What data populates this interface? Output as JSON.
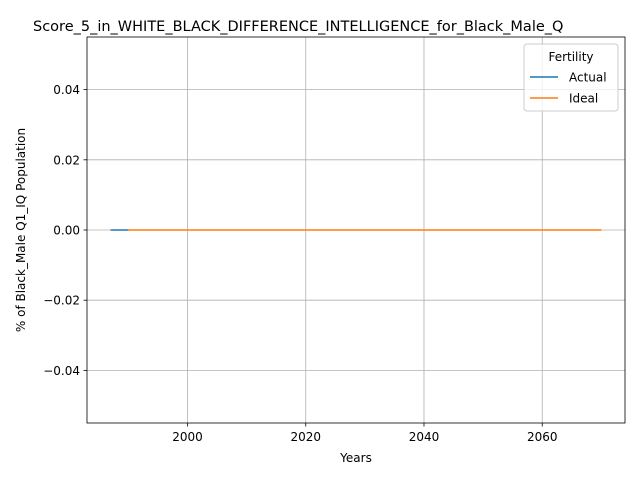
{
  "chart_data": {
    "type": "line",
    "title": "Score_5_in_WHITE_BLACK_DIFFERENCE_INTELLIGENCE_for_Black_Male_Q",
    "xlabel": "Years",
    "ylabel": "% of Black_Male Q1_IQ Population",
    "xlim": [
      1983,
      2074
    ],
    "ylim": [
      -0.055,
      0.055
    ],
    "xticks": [
      2000,
      2020,
      2040,
      2060
    ],
    "yticks": [
      -0.04,
      -0.02,
      0.0,
      0.02,
      0.04
    ],
    "ytick_labels": [
      "−0.04",
      "−0.02",
      "0.00",
      "0.02",
      "0.04"
    ],
    "grid": true,
    "legend": {
      "title": "Fertility",
      "placement": "top-right"
    },
    "series": [
      {
        "name": "Actual",
        "color": "#1f77b4",
        "x": [
          1987,
          1990
        ],
        "y": [
          0,
          0
        ]
      },
      {
        "name": "Ideal",
        "color": "#ff7f0e",
        "x": [
          1990,
          2070
        ],
        "y": [
          0,
          0
        ]
      }
    ]
  }
}
